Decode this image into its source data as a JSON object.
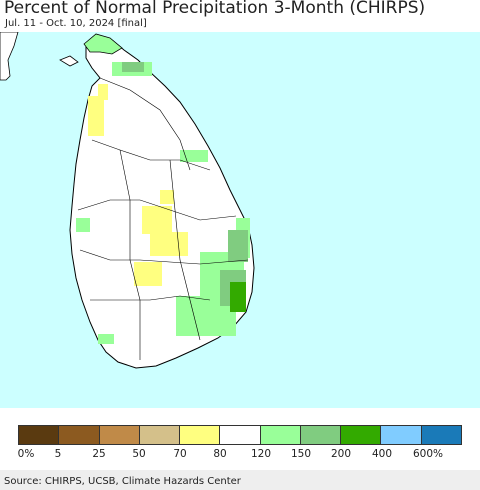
{
  "header": {
    "title": "Percent of Normal Precipitation 3-Month (CHIRPS)",
    "subtitle": "Jul. 11 - Oct. 10, 2024 [final]"
  },
  "colors": {
    "ocean": "#ccffff",
    "land": "#ffffff",
    "border": "#000000",
    "yellow": "#ffff80",
    "light_green": "#99ff99",
    "mid_green": "#80cc80",
    "dark_green": "#33aa00"
  },
  "legend": {
    "colors": [
      "#5a3a10",
      "#8c5a20",
      "#c08a48",
      "#d4c08a",
      "#ffff80",
      "#ffffff",
      "#99ff99",
      "#80cc80",
      "#33aa00",
      "#80ccff",
      "#1a7ab8"
    ],
    "labels": [
      "0%",
      "5",
      "25",
      "50",
      "70",
      "80",
      "120",
      "150",
      "200",
      "400",
      "600%"
    ]
  },
  "footer": {
    "source": "Source: CHIRPS, UCSB, Climate Hazards Center"
  }
}
